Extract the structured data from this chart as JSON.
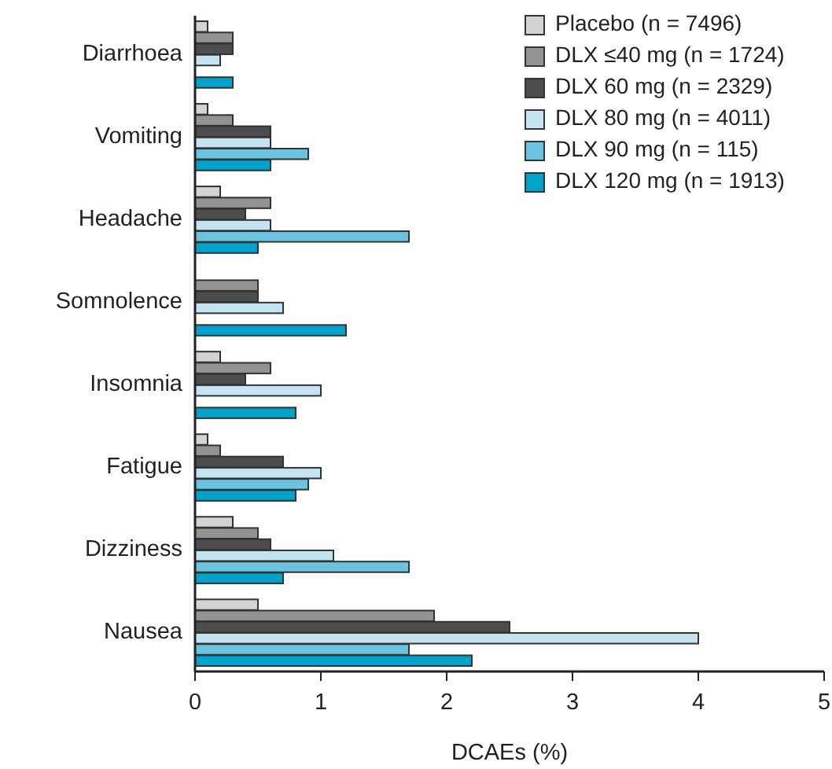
{
  "chart_data": {
    "type": "bar",
    "orientation": "horizontal",
    "xlabel": "DCAEs (%)",
    "categories": [
      "Diarrhoea",
      "Vomiting",
      "Headache",
      "Somnolence",
      "Insomnia",
      "Fatigue",
      "Dizziness",
      "Nausea"
    ],
    "xlim": [
      0,
      5
    ],
    "xticks": [
      0,
      1,
      2,
      3,
      4,
      5
    ],
    "grid": false,
    "legend": "top right",
    "series": [
      {
        "name": "Placebo (n = 7496)",
        "color": "#d3d3d3",
        "values": [
          0.1,
          0.1,
          0.2,
          null,
          0.2,
          0.1,
          0.3,
          0.5
        ]
      },
      {
        "name": "DLX ≤40 mg (n = 1724)",
        "color": "#939393",
        "values": [
          0.3,
          0.3,
          0.6,
          0.5,
          0.6,
          0.2,
          0.5,
          1.9
        ]
      },
      {
        "name": "DLX 60 mg (n = 2329)",
        "color": "#4d4d4f",
        "values": [
          0.3,
          0.6,
          0.4,
          0.5,
          0.4,
          0.7,
          0.6,
          2.5
        ]
      },
      {
        "name": "DLX 80 mg (n = 4011)",
        "color": "#c5e4f1",
        "values": [
          0.2,
          0.6,
          0.6,
          0.7,
          1.0,
          1.0,
          1.1,
          4.0
        ]
      },
      {
        "name": "DLX 90 mg (n = 115)",
        "color": "#6ac4e0",
        "values": [
          null,
          0.9,
          1.7,
          null,
          null,
          0.9,
          1.7,
          1.7
        ]
      },
      {
        "name": "DLX 120 mg (n = 1913)",
        "color": "#00a3cc",
        "values": [
          0.3,
          0.6,
          0.5,
          1.2,
          0.8,
          0.8,
          0.7,
          2.2
        ]
      }
    ]
  }
}
